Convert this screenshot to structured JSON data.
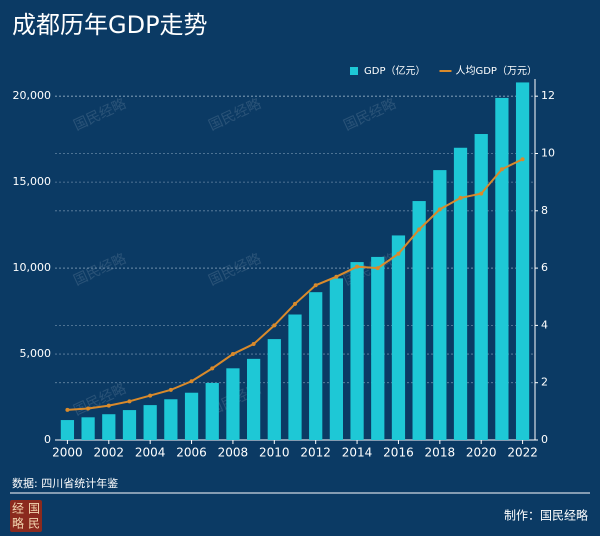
{
  "chart_data": {
    "type": "bar-line",
    "title": "成都历年GDP走势",
    "x": [
      2000,
      2001,
      2002,
      2003,
      2004,
      2005,
      2006,
      2007,
      2008,
      2009,
      2010,
      2011,
      2012,
      2013,
      2014,
      2015,
      2016,
      2017,
      2018,
      2019,
      2020,
      2021,
      2022
    ],
    "xlim": [
      1999.4,
      2022.6
    ],
    "xticks": [
      2000,
      2002,
      2004,
      2006,
      2008,
      2010,
      2012,
      2014,
      2016,
      2018,
      2020,
      2022
    ],
    "series": [
      {
        "name": "GDP（亿元）",
        "color": "#1ec8d6",
        "type": "bar",
        "values": [
          1160,
          1320,
          1500,
          1740,
          2030,
          2370,
          2750,
          3320,
          4170,
          4720,
          5870,
          7300,
          8600,
          9400,
          10350,
          10650,
          11900,
          13900,
          15700,
          17000,
          17800,
          19900,
          20800
        ]
      },
      {
        "name": "人均GDP（万元）",
        "color": "#d98a2b",
        "type": "line",
        "axis": "y2",
        "values": [
          1.05,
          1.1,
          1.2,
          1.35,
          1.55,
          1.75,
          2.05,
          2.5,
          3.0,
          3.35,
          4.0,
          4.75,
          5.4,
          5.7,
          6.05,
          6.0,
          6.5,
          7.35,
          8.05,
          8.45,
          8.6,
          9.45,
          9.8
        ]
      }
    ],
    "ylim": [
      0,
      21000
    ],
    "yticks": [
      0,
      {
        "value": 5000,
        "label": "5,000"
      },
      {
        "value": 10000,
        "label": "10,000"
      },
      {
        "value": 15000,
        "label": "15,000"
      },
      {
        "value": 20000,
        "label": "20,000"
      }
    ],
    "y2lim": [
      0,
      12.6
    ],
    "y2ticks": [
      0,
      2,
      4,
      6,
      8,
      10,
      12
    ],
    "grid": true,
    "legend": "top-right",
    "source": "数据: 四川省统计年鉴",
    "credit": "制作：国民经略",
    "watermark": "国民经略",
    "logo": [
      "经",
      "国",
      "略",
      "民"
    ]
  }
}
